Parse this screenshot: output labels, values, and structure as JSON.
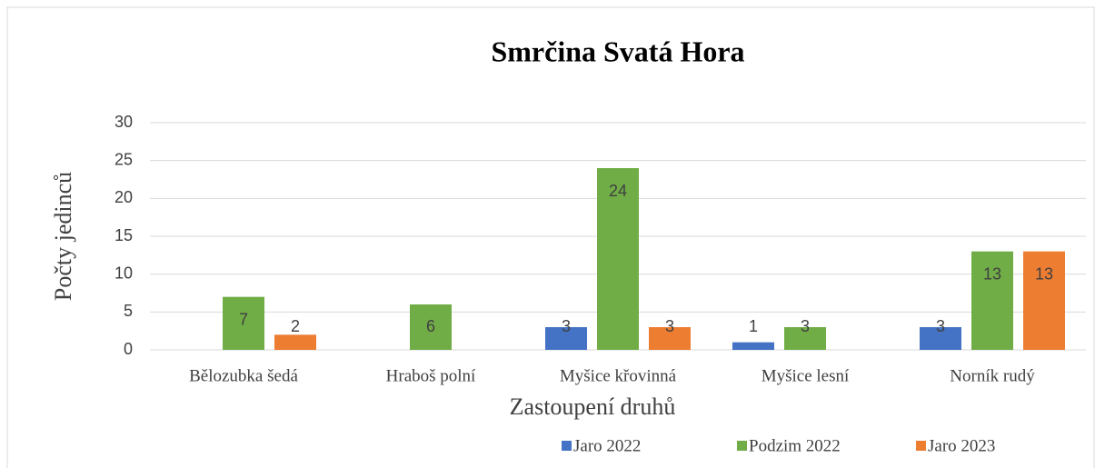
{
  "chart_data": {
    "type": "bar",
    "title": "Smrčina Svatá Hora",
    "x_label": "Zastoupení druhů",
    "y_label": "Počty jedinců",
    "categories": [
      "Bělozubka šedá",
      "Hraboš polní",
      "Myšice křovinná",
      "Myšice lesní",
      "Norník rudý"
    ],
    "series": [
      {
        "name": "Jaro 2022",
        "color": "#4472c4",
        "values": [
          null,
          null,
          3,
          1,
          3
        ]
      },
      {
        "name": "Podzim 2022",
        "color": "#70ad47",
        "values": [
          7,
          6,
          24,
          3,
          13
        ]
      },
      {
        "name": "Jaro 2023",
        "color": "#ed7d31",
        "values": [
          2,
          null,
          3,
          null,
          13
        ]
      }
    ],
    "ylim": [
      0,
      30
    ],
    "yticks": [
      0,
      5,
      10,
      15,
      20,
      25,
      30
    ],
    "grid": true,
    "legend": "bottom"
  }
}
